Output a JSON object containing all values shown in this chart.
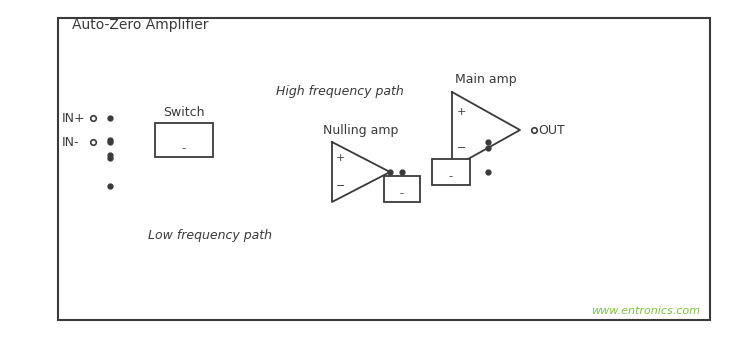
{
  "title": "Auto-Zero Amplifier",
  "label_main_amp": "Main amp",
  "label_nulling_amp": "Nulling amp",
  "label_switch": "Switch",
  "label_high_freq": "High frequency path",
  "label_low_freq": "Low frequency path",
  "label_in_plus": "IN+",
  "label_in_minus": "IN-",
  "label_out": "OUT",
  "label_watermark": "www.entronics.com",
  "bg_color": "#ffffff",
  "line_color": "#3a3a3a",
  "watermark_color": "#7dc242",
  "figsize": [
    7.3,
    3.4
  ],
  "dpi": 100
}
